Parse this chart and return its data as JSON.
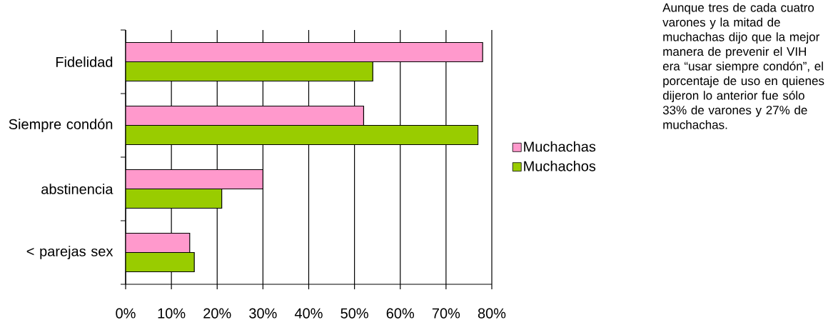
{
  "chart_data": {
    "type": "bar",
    "orientation": "horizontal",
    "categories": [
      "Fidelidad",
      "Siempre condón",
      "abstinencia",
      "< parejas sex"
    ],
    "series": [
      {
        "name": "Muchachas",
        "color": "#ff99cc",
        "values": [
          78,
          52,
          30,
          14
        ]
      },
      {
        "name": "Muchachos",
        "color": "#99cc00",
        "values": [
          54,
          77,
          21,
          15
        ]
      }
    ],
    "xlim": [
      0,
      80
    ],
    "xticks": [
      {
        "value": 0,
        "label": "0%"
      },
      {
        "value": 10,
        "label": "10%"
      },
      {
        "value": 20,
        "label": "20%"
      },
      {
        "value": 30,
        "label": "30%"
      },
      {
        "value": 40,
        "label": "40%"
      },
      {
        "value": 50,
        "label": "50%"
      },
      {
        "value": 60,
        "label": "60%"
      },
      {
        "value": 70,
        "label": "70%"
      },
      {
        "value": 80,
        "label": "80%"
      }
    ],
    "grid": "x",
    "legend": "right",
    "annotations": [
      "Aunque tres de cada cuatro varones y la mitad de muchachas dijo que la mejor manera de prevenir el VIH era “usar siempre condón”, el porcentaje de uso en quienes dijeron lo anterior fue sólo 33% de varones y 27% de muchachas."
    ]
  }
}
